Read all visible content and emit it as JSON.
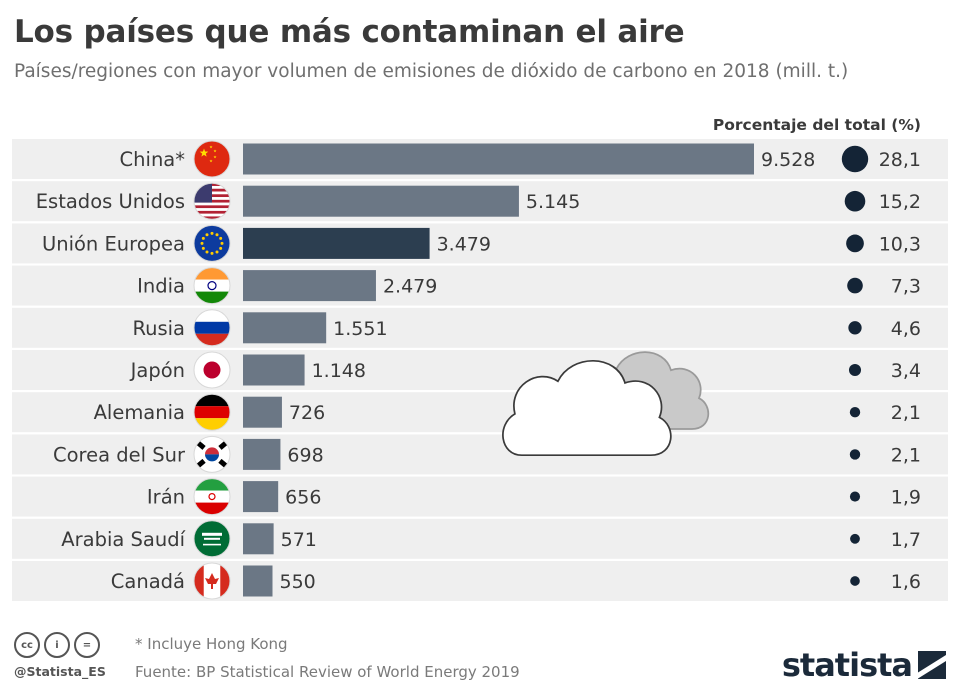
{
  "header": {
    "title": "Los países que más contaminan el aire",
    "subtitle": "Países/regiones con mayor volumen de emisiones de dióxido de carbono en 2018 (mill. t.)"
  },
  "chart_data": {
    "type": "bar",
    "orientation": "horizontal",
    "title": "Los países que más contaminan el aire",
    "subtitle": "Países/regiones con mayor volumen de emisiones de dióxido de carbono en 2018 (mill. t.)",
    "value_unit": "mill. t.",
    "percent_column_label": "Porcentaje del total (%)",
    "categories": [
      "China*",
      "Estados Unidos",
      "Unión Europea",
      "India",
      "Rusia",
      "Japón",
      "Alemania",
      "Corea del Sur",
      "Irán",
      "Arabia Saudí",
      "Canadá"
    ],
    "values": [
      9528,
      5145,
      3479,
      2479,
      1551,
      1148,
      726,
      698,
      656,
      571,
      550
    ],
    "value_labels": [
      "9.528",
      "5.145",
      "3.479",
      "2.479",
      "1.551",
      "1.148",
      "726",
      "698",
      "656",
      "571",
      "550"
    ],
    "percent_values": [
      28.1,
      15.2,
      10.3,
      7.3,
      4.6,
      3.4,
      2.1,
      2.1,
      1.9,
      1.7,
      1.6
    ],
    "percent_labels": [
      "28,1",
      "15,2",
      "10,3",
      "7,3",
      "4,6",
      "3,4",
      "2,1",
      "2,1",
      "1,9",
      "1,7",
      "1,6"
    ],
    "flags": [
      "china",
      "usa",
      "eu",
      "india",
      "russia",
      "japan",
      "germany",
      "south-korea",
      "iran",
      "saudi-arabia",
      "canada"
    ],
    "highlighted_category": "Unión Europea",
    "xlim": [
      0,
      9528
    ],
    "grid": false
  },
  "colors": {
    "bar": "#6b7785",
    "bar_highlight": "#2c3e50",
    "row_band": "#efefef",
    "dot": "#142436",
    "text": "#3a3a3a"
  },
  "footer": {
    "note": "* Incluye Hong Kong",
    "source": "Fuente: BP Statistical Review of World Energy 2019",
    "handle": "@Statista_ES",
    "brand": "statista",
    "cc_icons": [
      "cc",
      "by",
      "nd"
    ]
  }
}
